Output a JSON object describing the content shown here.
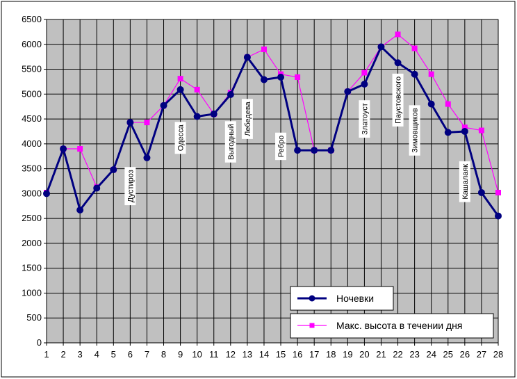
{
  "chart_data": {
    "type": "line",
    "title": "",
    "xlabel": "",
    "ylabel": "",
    "x": [
      1,
      2,
      3,
      4,
      5,
      6,
      7,
      8,
      9,
      10,
      11,
      12,
      13,
      14,
      15,
      16,
      17,
      18,
      19,
      20,
      21,
      22,
      23,
      24,
      25,
      26,
      27,
      28
    ],
    "ylim": [
      0,
      6500
    ],
    "yticks": [
      0,
      500,
      1000,
      1500,
      2000,
      2500,
      3000,
      3500,
      4000,
      4500,
      5000,
      5500,
      6000,
      6500
    ],
    "grid": true,
    "plot_background": "#c0c0c0",
    "legend_position": "bottom-right",
    "series": [
      {
        "name": "Ночевки",
        "color": "#000080",
        "marker": "circle",
        "values": [
          3000,
          3900,
          2670,
          3110,
          3480,
          4430,
          3720,
          4770,
          5090,
          4550,
          4600,
          4990,
          5740,
          5290,
          5340,
          3870,
          3870,
          3870,
          5050,
          5200,
          5950,
          5630,
          5400,
          4800,
          4230,
          4250,
          3020,
          2550
        ]
      },
      {
        "name": "Макс. высота в течении дня",
        "color": "#ff00ff",
        "marker": "square",
        "values": [
          3020,
          3900,
          3900,
          3130,
          3480,
          4430,
          4430,
          4770,
          5310,
          5090,
          4600,
          5030,
          5740,
          5900,
          5400,
          5340,
          3870,
          3870,
          5050,
          5430,
          5950,
          6200,
          5920,
          5400,
          4800,
          4330,
          4270,
          3020
        ]
      }
    ],
    "annotations": [
      {
        "text": "Дустироз",
        "x": 6,
        "y": 3150
      },
      {
        "text": "Одесса",
        "x": 9,
        "y": 4120
      },
      {
        "text": "Выгодный",
        "x": 12,
        "y": 4040
      },
      {
        "text": "Лебедева",
        "x": 13,
        "y": 4500
      },
      {
        "text": "Ребро",
        "x": 15,
        "y": 3950
      },
      {
        "text": "Златоуст",
        "x": 20,
        "y": 4500
      },
      {
        "text": "Паустовского",
        "x": 22,
        "y": 4880
      },
      {
        "text": "Зимовщиков",
        "x": 23,
        "y": 4270
      },
      {
        "text": "Кашалаяк",
        "x": 26,
        "y": 3240
      }
    ]
  }
}
